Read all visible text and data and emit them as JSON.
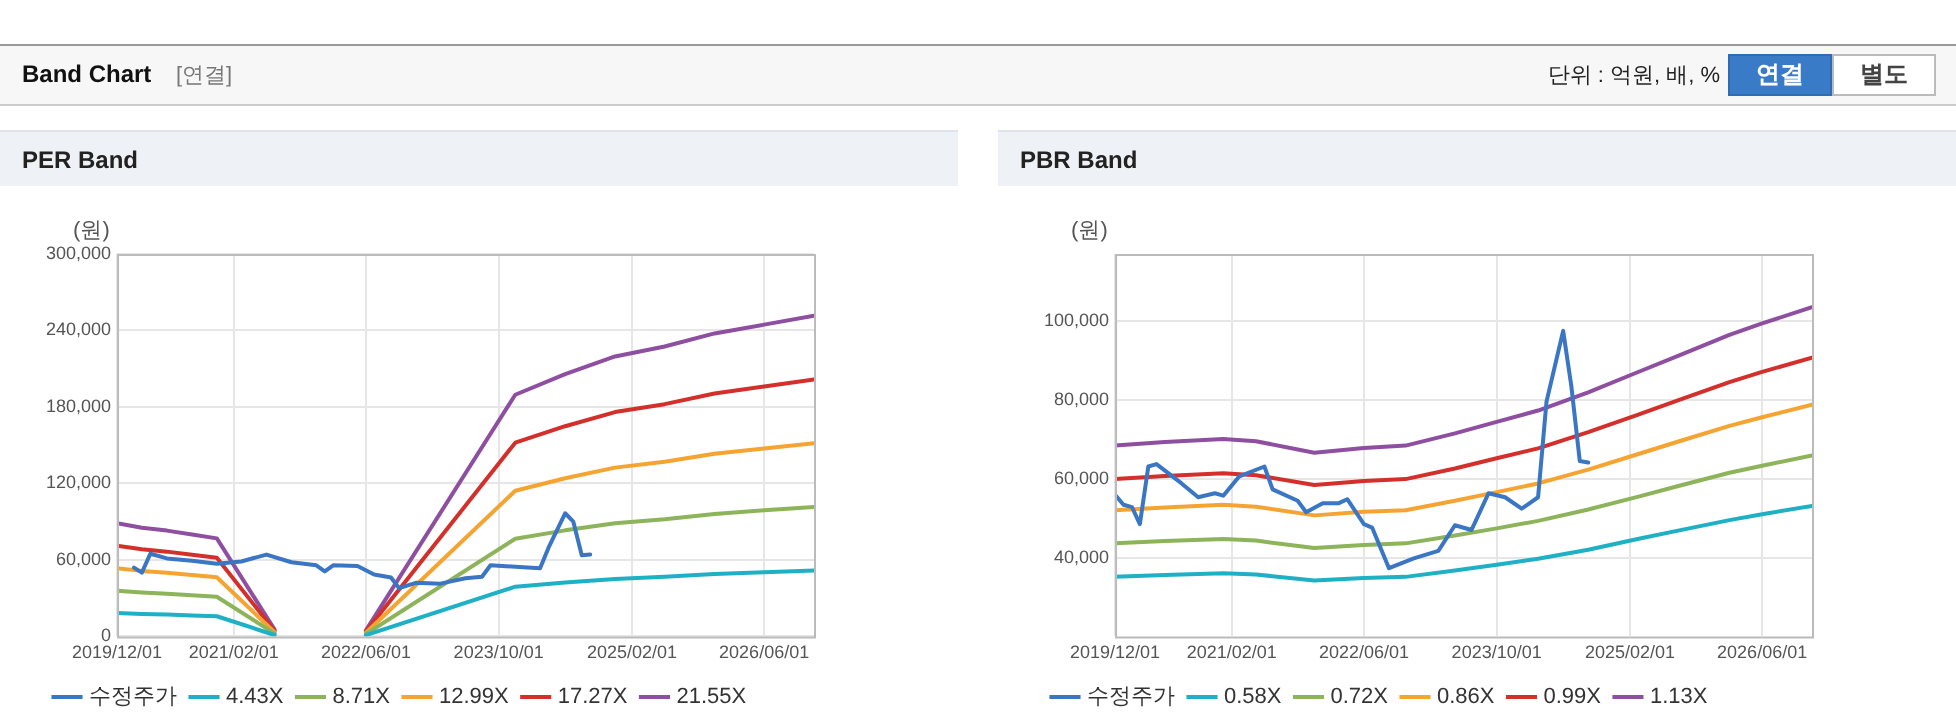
{
  "chart_data": [
    {
      "type": "line",
      "title": "PER Band",
      "ylabel": "(원)",
      "annotations": [
        "Band Chart",
        "[연결]",
        "단위 : 억원, 배, %",
        "연결",
        "별도"
      ],
      "x": [
        "2019-12",
        "2020-03",
        "2020-06",
        "2020-09",
        "2020-12",
        "2021-07",
        "2022-01",
        "2022-06",
        "2023-12",
        "2024-06",
        "2024-12",
        "2025-06",
        "2025-12",
        "2026-06",
        "2026-12"
      ],
      "series": [
        {
          "name": "수정주가",
          "color": "#3a76c4",
          "x": [
            "2020-02",
            "2020-03",
            "2020-04",
            "2020-06",
            "2020-09",
            "2020-12",
            "2021-03",
            "2021-06",
            "2021-09",
            "2021-12",
            "2022-01",
            "2022-02",
            "2022-05",
            "2022-07",
            "2022-09",
            "2022-10",
            "2022-12",
            "2023-03",
            "2023-06",
            "2023-08",
            "2023-09",
            "2023-12",
            "2024-03",
            "2024-04",
            "2024-06",
            "2024-07",
            "2024-08",
            "2024-09"
          ],
          "values": [
            54000,
            50000,
            64800,
            61200,
            59400,
            57000,
            58800,
            64200,
            58200,
            55800,
            51000,
            55800,
            55200,
            48600,
            46200,
            37800,
            42000,
            41400,
            45600,
            46800,
            55800,
            54600,
            53400,
            69600,
            96600,
            90000,
            63600,
            64200
          ]
        },
        {
          "name": "4.43X",
          "color": "#1eb0c4",
          "values": [
            18300,
            17500,
            17100,
            16400,
            15800,
            1100,
            null,
            1000,
            39000,
            42300,
            45100,
            46700,
            48900,
            50300,
            51700
          ]
        },
        {
          "name": "8.71X",
          "color": "#8db45a",
          "values": [
            35900,
            34500,
            33500,
            32300,
            31100,
            2200,
            null,
            1900,
            76600,
            83200,
            88800,
            91900,
            96100,
            98900,
            101600
          ]
        },
        {
          "name": "12.99X",
          "color": "#f5a431",
          "values": [
            53500,
            51400,
            50000,
            48200,
            46400,
            3200,
            null,
            2900,
            114300,
            124100,
            132400,
            137000,
            143300,
            147400,
            151600
          ]
        },
        {
          "name": "17.27X",
          "color": "#d3302b",
          "values": [
            71200,
            68400,
            66500,
            64100,
            61700,
            4300,
            null,
            3800,
            152000,
            164900,
            176000,
            182200,
            190500,
            196000,
            201500
          ]
        },
        {
          "name": "21.55X",
          "color": "#8e4fa0",
          "values": [
            88800,
            85300,
            83000,
            80000,
            76900,
            5400,
            null,
            4700,
            189600,
            205800,
            219600,
            227400,
            237700,
            244600,
            251500
          ]
        }
      ],
      "xlim": [
        "2019-12-01",
        "2026-12-01"
      ],
      "xticks": [
        {
          "value": "2019-12-01",
          "label": "2019/12/01"
        },
        {
          "value": "2021-02-01",
          "label": "2021/02/01"
        },
        {
          "value": "2022-06-01",
          "label": "2022/06/01"
        },
        {
          "value": "2023-10-01",
          "label": "2023/10/01"
        },
        {
          "value": "2025-02-01",
          "label": "2025/02/01"
        },
        {
          "value": "2026-06-01",
          "label": "2026/06/01"
        }
      ],
      "ylim": [
        0,
        300000
      ],
      "yticks": [
        0,
        {
          "value": 60000,
          "label": "60,000"
        },
        {
          "value": 120000,
          "label": "120,000"
        },
        {
          "value": 180000,
          "label": "180,000"
        },
        {
          "value": 240000,
          "label": "240,000"
        },
        {
          "value": 300000,
          "label": "300,000"
        }
      ],
      "grid": true,
      "legend": "bottom",
      "marker": "none",
      "line_style": "solid"
    },
    {
      "type": "line",
      "title": "PBR Band",
      "ylabel": "(원)",
      "x": [
        "2019-12",
        "2020-06",
        "2021-01",
        "2021-05",
        "2021-12",
        "2022-06",
        "2022-11",
        "2023-05",
        "2023-10",
        "2024-03",
        "2024-09",
        "2025-03",
        "2025-08",
        "2026-02",
        "2026-06",
        "2026-12"
      ],
      "series": [
        {
          "name": "수정주가",
          "color": "#3a76c4",
          "x": [
            "2019-12",
            "2020-01",
            "2020-02",
            "2020-03",
            "2020-04",
            "2020-05",
            "2020-08",
            "2020-10",
            "2020-12",
            "2021-01",
            "2021-03",
            "2021-06",
            "2021-07",
            "2021-10",
            "2021-11",
            "2022-01",
            "2022-03",
            "2022-04",
            "2022-06",
            "2022-07",
            "2022-09",
            "2022-12",
            "2023-03",
            "2023-05",
            "2023-07",
            "2023-09",
            "2023-11",
            "2024-01",
            "2024-03",
            "2024-04",
            "2024-06",
            "2024-07",
            "2024-08",
            "2024-09"
          ],
          "values": [
            55900,
            53400,
            52800,
            48500,
            63100,
            63700,
            58800,
            55300,
            56300,
            55700,
            60600,
            63100,
            57300,
            54400,
            51500,
            53800,
            53800,
            54800,
            48500,
            47600,
            37300,
            39800,
            41700,
            48200,
            47000,
            56300,
            55300,
            52400,
            55300,
            79600,
            97500,
            83500,
            64500,
            64100
          ]
        },
        {
          "name": "0.58X",
          "color": "#1eb0c4",
          "values": [
            35100,
            35600,
            36000,
            35700,
            34200,
            34800,
            35100,
            36700,
            38200,
            39700,
            42000,
            44700,
            46900,
            49500,
            51000,
            53100
          ]
        },
        {
          "name": "0.72X",
          "color": "#8db45a",
          "values": [
            43600,
            44200,
            44700,
            44300,
            42400,
            43200,
            43600,
            45600,
            47400,
            49300,
            52200,
            55400,
            58200,
            61500,
            63300,
            65900
          ]
        },
        {
          "name": "0.86X",
          "color": "#f5a431",
          "values": [
            52000,
            52700,
            53400,
            52900,
            50700,
            51600,
            52000,
            54400,
            56600,
            58800,
            62300,
            66200,
            69500,
            73400,
            75600,
            78800
          ]
        },
        {
          "name": "0.99X",
          "color": "#d3302b",
          "values": [
            59900,
            60700,
            61400,
            60900,
            58400,
            59400,
            59900,
            62600,
            65200,
            67700,
            71800,
            76200,
            80000,
            84500,
            87100,
            90700
          ]
        },
        {
          "name": "1.13X",
          "color": "#8e4fa0",
          "values": [
            68400,
            69300,
            70100,
            69500,
            66600,
            67800,
            68400,
            71500,
            74400,
            77300,
            81900,
            87000,
            91300,
            96500,
            99400,
            103500
          ]
        }
      ],
      "xlim": [
        "2019-12-01",
        "2026-12-01"
      ],
      "xticks": [
        {
          "value": "2019-12-01",
          "label": "2019/12/01"
        },
        {
          "value": "2021-02-01",
          "label": "2021/02/01"
        },
        {
          "value": "2022-06-01",
          "label": "2022/06/01"
        },
        {
          "value": "2023-10-01",
          "label": "2023/10/01"
        },
        {
          "value": "2025-02-01",
          "label": "2025/02/01"
        },
        {
          "value": "2026-06-01",
          "label": "2026/06/01"
        }
      ],
      "ylim": [
        20000,
        117000
      ],
      "yticks": [
        {
          "value": 40000,
          "label": "40,000"
        },
        {
          "value": 60000,
          "label": "60,000"
        },
        {
          "value": 80000,
          "label": "80,000"
        },
        {
          "value": 100000,
          "label": "100,000"
        }
      ],
      "grid": true,
      "legend": "bottom",
      "marker": "none",
      "line_style": "solid"
    }
  ]
}
